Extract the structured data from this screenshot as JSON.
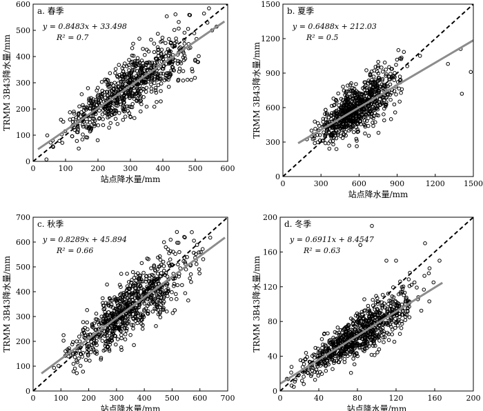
{
  "chart_data": [
    {
      "type": "scatter",
      "title": "a. 春季",
      "xlabel": "站点降水量/mm",
      "ylabel": "TRMM 3B43降水量/mm",
      "xlim": [
        0,
        600
      ],
      "ylim": [
        0,
        600
      ],
      "xticks": [
        0,
        100,
        200,
        300,
        400,
        500,
        600
      ],
      "yticks": [
        0,
        100,
        200,
        300,
        400,
        500,
        600
      ],
      "equation": "y = 0.8483x + 33.498",
      "r2": "R² = 0.7",
      "fit": {
        "slope": 0.8483,
        "intercept": 33.498,
        "x_range": [
          15,
          590
        ],
        "color": "#8c8c8c"
      },
      "one_to_one": {
        "x_range": [
          0,
          600
        ],
        "style": "dashed"
      },
      "marker": "hollow-circle",
      "scatter_n": 720,
      "scatter_x_range": [
        20,
        590
      ],
      "scatter_noise": 55,
      "seed": 11
    },
    {
      "type": "scatter",
      "title": "b. 夏季",
      "xlabel": "站点降水量/mm",
      "ylabel": "TRMM 3B43降水量/mm",
      "xlim": [
        0,
        1500
      ],
      "ylim": [
        0,
        1500
      ],
      "xticks": [
        0,
        300,
        600,
        900,
        1200,
        1500
      ],
      "yticks": [
        0,
        300,
        600,
        900,
        1200,
        1500
      ],
      "equation": "y = 0.6488x + 212.03",
      "r2": "R² = 0.5",
      "fit": {
        "slope": 0.6488,
        "intercept": 212.03,
        "x_range": [
          120,
          1500
        ],
        "color": "#8c8c8c"
      },
      "one_to_one": {
        "x_range": [
          0,
          1500
        ],
        "style": "dashed"
      },
      "marker": "hollow-circle",
      "scatter_n": 780,
      "scatter_x_range": [
        150,
        1050
      ],
      "scatter_noise": 110,
      "seed": 23,
      "extra_points": [
        [
          1400,
          1110
        ],
        [
          1480,
          910
        ],
        [
          1410,
          720
        ],
        [
          1300,
          980
        ],
        [
          1080,
          1050
        ]
      ]
    },
    {
      "type": "scatter",
      "title": "c. 秋季",
      "xlabel": "站点降水量/mm",
      "ylabel": "TRMM 3B43降水量/mm",
      "xlim": [
        0,
        700
      ],
      "ylim": [
        0,
        700
      ],
      "xticks": [
        0,
        100,
        200,
        300,
        400,
        500,
        600,
        700
      ],
      "yticks": [
        0,
        100,
        200,
        300,
        400,
        500,
        600,
        700
      ],
      "equation": "y = 0.8289x + 45.894",
      "r2": "R² = 0.66",
      "fit": {
        "slope": 0.8289,
        "intercept": 45.894,
        "x_range": [
          30,
          690
        ],
        "color": "#8c8c8c"
      },
      "one_to_one": {
        "x_range": [
          0,
          700
        ],
        "style": "dashed"
      },
      "marker": "hollow-circle",
      "scatter_n": 760,
      "scatter_x_range": [
        40,
        680
      ],
      "scatter_noise": 60,
      "seed": 37
    },
    {
      "type": "scatter",
      "title": "d. 冬季",
      "xlabel": "站点降水量/mm",
      "ylabel": "TRMM 3B43降水量/mm",
      "xlim": [
        0,
        200
      ],
      "ylim": [
        0,
        200
      ],
      "xticks": [
        0,
        40,
        80,
        120,
        160,
        200
      ],
      "yticks": [
        0,
        40,
        80,
        120,
        160,
        200
      ],
      "equation": "y = 0.6911x + 8.4547",
      "r2": "R² = 0.63",
      "fit": {
        "slope": 0.6911,
        "intercept": 8.4547,
        "x_range": [
          0,
          168
        ],
        "color": "#8c8c8c"
      },
      "one_to_one": {
        "x_range": [
          0,
          200
        ],
        "style": "dashed"
      },
      "marker": "hollow-circle",
      "scatter_n": 800,
      "scatter_x_range": [
        0,
        170
      ],
      "scatter_noise": 13,
      "seed": 53,
      "extra_points": [
        [
          95,
          190
        ],
        [
          110,
          150
        ],
        [
          120,
          150
        ],
        [
          150,
          170
        ],
        [
          165,
          150
        ],
        [
          83,
          168
        ]
      ]
    }
  ]
}
